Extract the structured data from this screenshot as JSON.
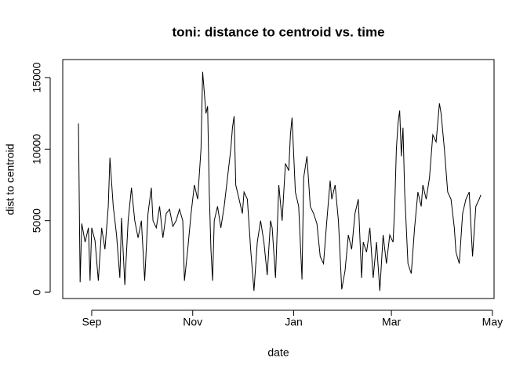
{
  "chart_data": {
    "type": "line",
    "title": "toni: distance to centroid vs. time",
    "x_label": "date",
    "y_label": "dist to centroid",
    "x": [
      -8,
      -7,
      -6,
      -4,
      -2,
      -1,
      0,
      2,
      4,
      6,
      8,
      10,
      11,
      13,
      15,
      17,
      18,
      20,
      22,
      24,
      26,
      28,
      30,
      32,
      34,
      36,
      37,
      39,
      41,
      43,
      45,
      47,
      49,
      51,
      53,
      55,
      56,
      58,
      60,
      62,
      64,
      66,
      67,
      69,
      70,
      71,
      72,
      73,
      74,
      76,
      78,
      80,
      82,
      84,
      85,
      86,
      87,
      89,
      91,
      92,
      94,
      96,
      98,
      100,
      102,
      104,
      106,
      108,
      109,
      111,
      113,
      115,
      117,
      119,
      120,
      121,
      123,
      125,
      127,
      128,
      130,
      132,
      134,
      136,
      138,
      140,
      142,
      144,
      145,
      147,
      149,
      151,
      153,
      155,
      157,
      159,
      161,
      163,
      164,
      166,
      168,
      170,
      172,
      174,
      176,
      178,
      180,
      182,
      183,
      184,
      185,
      186,
      187,
      188,
      189,
      191,
      193,
      195,
      197,
      199,
      200,
      202,
      204,
      206,
      208,
      210,
      211,
      213,
      215,
      217,
      219,
      220,
      222,
      224,
      226,
      228,
      230,
      232,
      234,
      235
    ],
    "series": [
      {
        "color": "#000000",
        "values": [
          11800,
          700,
          4800,
          3500,
          4500,
          800,
          4500,
          3600,
          800,
          4500,
          3000,
          6000,
          9400,
          6000,
          4000,
          1000,
          5200,
          500,
          5000,
          7300,
          5000,
          3800,
          5000,
          800,
          5500,
          7300,
          5000,
          4500,
          6000,
          3800,
          5500,
          5800,
          4600,
          5000,
          5800,
          5000,
          800,
          3000,
          5500,
          7500,
          6500,
          10000,
          15400,
          12500,
          13000,
          7000,
          3000,
          800,
          5000,
          6000,
          4500,
          6000,
          8000,
          10000,
          11500,
          12300,
          7500,
          6500,
          5500,
          7000,
          6500,
          3000,
          100,
          3500,
          5000,
          3500,
          1200,
          5000,
          4500,
          1000,
          7500,
          5000,
          9000,
          8500,
          11000,
          12200,
          7000,
          6000,
          900,
          8000,
          9500,
          6000,
          5500,
          4800,
          2500,
          2000,
          5000,
          7800,
          6500,
          7500,
          5000,
          200,
          1500,
          4000,
          3000,
          5500,
          6500,
          1000,
          3500,
          2800,
          4500,
          1000,
          3500,
          100,
          4000,
          2000,
          4000,
          3500,
          6000,
          10000,
          11800,
          12700,
          9500,
          11500,
          7000,
          2000,
          1300,
          4500,
          7000,
          6000,
          7500,
          6500,
          8000,
          11000,
          10500,
          13200,
          12500,
          10000,
          7000,
          6500,
          4500,
          2800,
          2000,
          5500,
          6500,
          7000,
          2500,
          6000,
          6500,
          6800
        ]
      }
    ],
    "xlim": [
      -17.5,
      243
    ],
    "xticks": [
      {
        "value": 0,
        "label": "Sep"
      },
      {
        "value": 61,
        "label": "Nov"
      },
      {
        "value": 122,
        "label": "Jan"
      },
      {
        "value": 181,
        "label": "Mar"
      },
      {
        "value": 242,
        "label": "May"
      }
    ],
    "ylim": [
      -438,
      16259
    ],
    "yticks": [
      0,
      5000,
      10000,
      15000
    ]
  }
}
